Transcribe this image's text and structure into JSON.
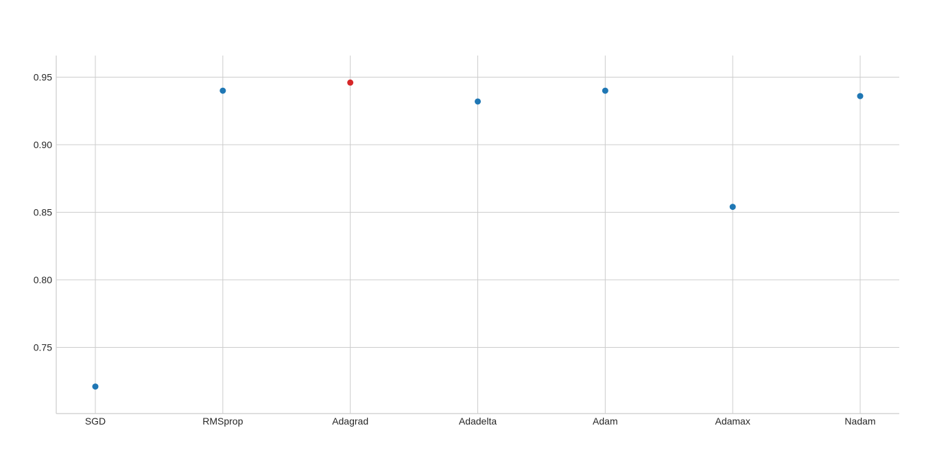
{
  "chart_data": {
    "type": "scatter",
    "title": "",
    "xlabel": "",
    "ylabel": "",
    "categories": [
      "SGD",
      "RMSprop",
      "Adagrad",
      "Adadelta",
      "Adam",
      "Adamax",
      "Nadam"
    ],
    "values": [
      0.721,
      0.94,
      0.946,
      0.932,
      0.94,
      0.854,
      0.936
    ],
    "highlight_index": 2,
    "ylim": [
      0.701,
      0.966
    ],
    "yticks": [
      0.75,
      0.8,
      0.85,
      0.9,
      0.95
    ],
    "ytick_labels": [
      "0.75",
      "0.80",
      "0.85",
      "0.90",
      "0.95"
    ],
    "grid": true,
    "colors": {
      "point": "#1f77b4",
      "highlight": "#d62728",
      "grid": "#cccccc",
      "axis": "#cccccc",
      "text": "#262626"
    }
  }
}
